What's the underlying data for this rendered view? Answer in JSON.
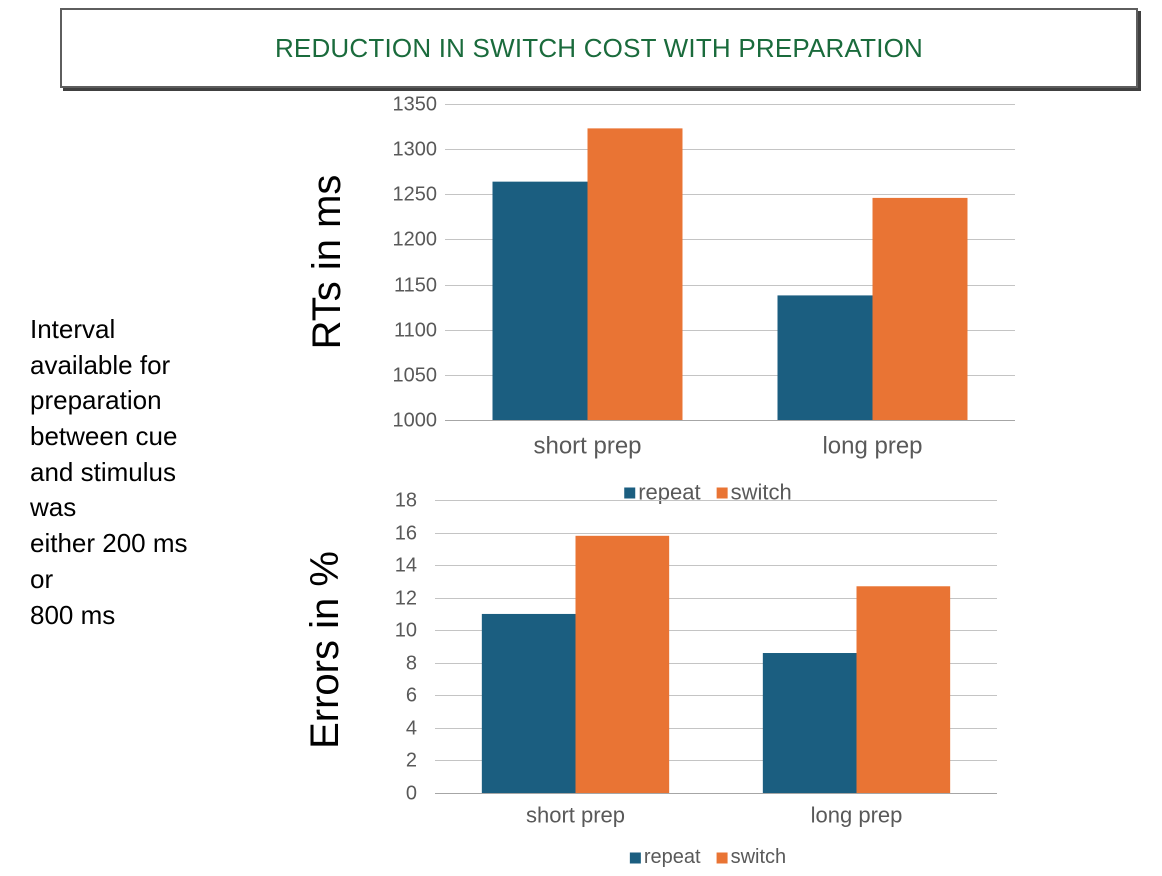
{
  "slide": {
    "title": "REDUCTION IN SWITCH COST WITH PREPARATION",
    "side_note_lines": [
      "Interval",
      "available for",
      "preparation",
      "between cue",
      "and stimulus",
      "was",
      "either 200 ms",
      "or",
      "800 ms"
    ]
  },
  "colors": {
    "title": "#1a6b3c",
    "repeat": "#1b5e80",
    "switch": "#e97434",
    "axis_text": "#595959",
    "gridline": "#c4c4c4",
    "baseline": "#a6a6a6"
  },
  "chart_data": [
    {
      "type": "bar",
      "categories": [
        "short prep",
        "long prep"
      ],
      "series": [
        {
          "name": "repeat",
          "values": [
            1264,
            1138
          ]
        },
        {
          "name": "switch",
          "values": [
            1323,
            1246
          ]
        }
      ],
      "ylabel": "RTs in ms",
      "ylim": [
        1000,
        1350
      ],
      "yticks": [
        1000,
        1050,
        1100,
        1150,
        1200,
        1250,
        1300,
        1350
      ],
      "grid": true,
      "legend": "bottom"
    },
    {
      "type": "bar",
      "categories": [
        "short prep",
        "long prep"
      ],
      "series": [
        {
          "name": "repeat",
          "values": [
            11.0,
            8.6
          ]
        },
        {
          "name": "switch",
          "values": [
            15.8,
            12.7
          ]
        }
      ],
      "ylabel": "Errors in %",
      "ylim": [
        0,
        18
      ],
      "yticks": [
        0,
        2,
        4,
        6,
        8,
        10,
        12,
        14,
        16,
        18
      ],
      "grid": true,
      "legend": "bottom"
    }
  ]
}
